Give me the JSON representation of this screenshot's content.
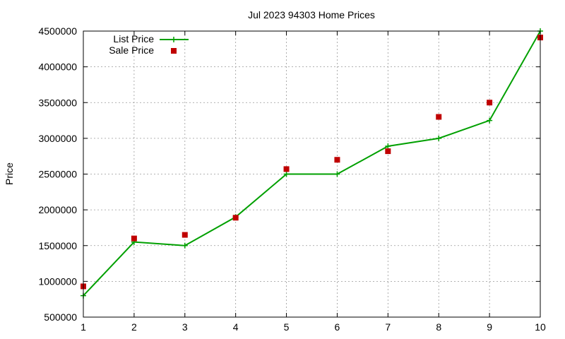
{
  "chart_data": {
    "type": "line",
    "title": "Jul 2023 94303 Home Prices",
    "xlabel": "",
    "ylabel": "Price",
    "xlim": [
      1,
      10
    ],
    "ylim": [
      500000,
      4500000
    ],
    "x_ticks": [
      1,
      2,
      3,
      4,
      5,
      6,
      7,
      8,
      9,
      10
    ],
    "y_ticks": [
      500000,
      1000000,
      1500000,
      2000000,
      2500000,
      3000000,
      3500000,
      4000000,
      4500000
    ],
    "grid": true,
    "legend_position": "top-left",
    "series": [
      {
        "name": "List Price",
        "style": "line-with-plus-markers",
        "color": "#00a000",
        "x": [
          1,
          2,
          3,
          4,
          5,
          6,
          7,
          8,
          9,
          10
        ],
        "y": [
          800000,
          1550000,
          1500000,
          1900000,
          2500000,
          2500000,
          2890000,
          3000000,
          3250000,
          4500000
        ]
      },
      {
        "name": "Sale Price",
        "style": "square-markers",
        "color": "#c00000",
        "x": [
          1,
          2,
          3,
          4,
          5,
          6,
          7,
          8,
          9,
          10
        ],
        "y": [
          930000,
          1600000,
          1650000,
          1890000,
          2570000,
          2700000,
          2820000,
          3300000,
          3500000,
          4410000
        ]
      }
    ]
  }
}
